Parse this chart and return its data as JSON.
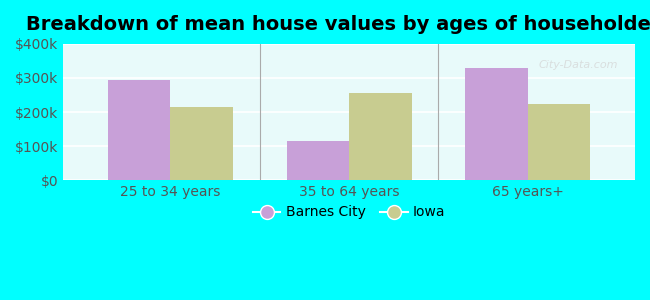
{
  "title": "Breakdown of mean house values by ages of householders",
  "categories": [
    "25 to 34 years",
    "35 to 64 years",
    "65 years+"
  ],
  "barnes_city_values": [
    295000,
    115000,
    330000
  ],
  "iowa_values": [
    215000,
    255000,
    225000
  ],
  "bar_color_barnes": "#c8a0d8",
  "bar_color_iowa": "#c8cc90",
  "ylim": [
    0,
    400000
  ],
  "yticks": [
    0,
    100000,
    200000,
    300000,
    400000
  ],
  "ytick_labels": [
    "$0",
    "$100k",
    "$200k",
    "$300k",
    "$400k"
  ],
  "legend_labels": [
    "Barnes City",
    "Iowa"
  ],
  "background_color": "#e8fafa",
  "outer_background": "#00ffff",
  "bar_width": 0.35,
  "title_fontsize": 14,
  "tick_fontsize": 10,
  "legend_fontsize": 10
}
